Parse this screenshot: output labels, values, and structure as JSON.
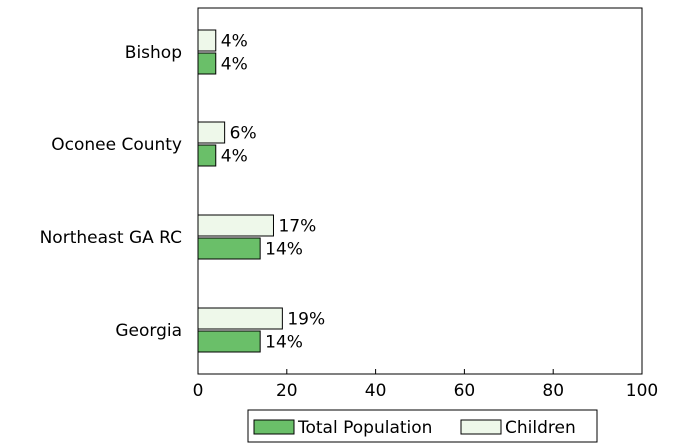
{
  "chart_data": {
    "type": "bar",
    "orientation": "horizontal",
    "categories": [
      "Bishop",
      "Oconee County",
      "Northeast GA RC",
      "Georgia"
    ],
    "series": [
      {
        "name": "Total Population",
        "values": [
          4,
          4,
          14,
          14
        ],
        "labels": [
          "4%",
          "4%",
          "14%",
          "14%"
        ],
        "color": "#6abf69",
        "stroke": "#000000"
      },
      {
        "name": "Children",
        "values": [
          4,
          6,
          17,
          19
        ],
        "labels": [
          "4%",
          "6%",
          "17%",
          "19%"
        ],
        "color": "#eef8ea",
        "stroke": "#000000"
      }
    ],
    "xlim": [
      0,
      100
    ],
    "xticks": [
      0,
      20,
      40,
      60,
      80,
      100
    ],
    "xtick_labels": [
      "0",
      "20",
      "40",
      "60",
      "80",
      "100"
    ],
    "grid": false,
    "legend_position": "bottom"
  }
}
